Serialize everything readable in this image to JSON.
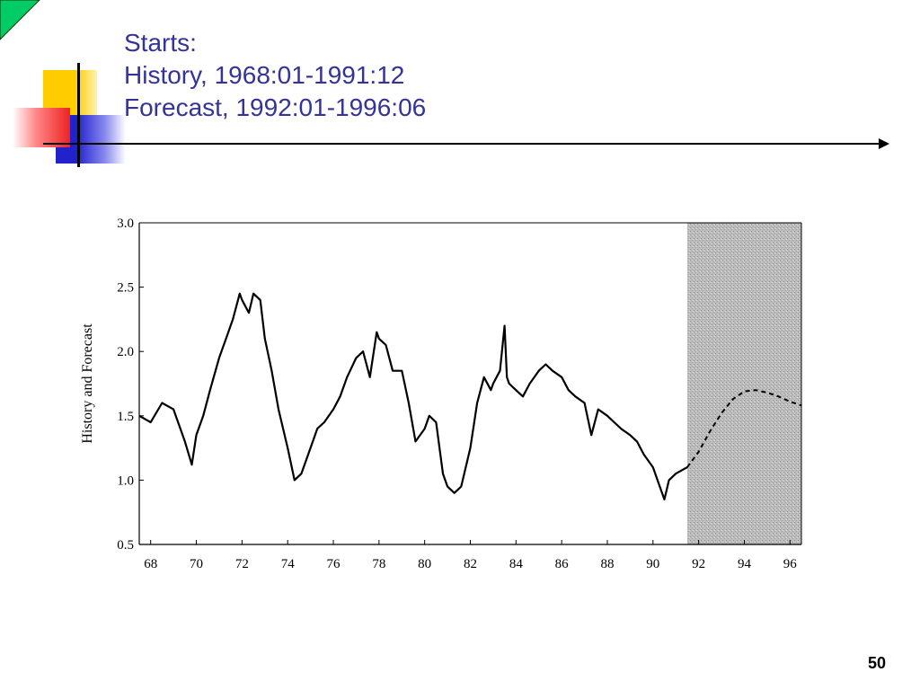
{
  "slide": {
    "title_lines": [
      "Starts:",
      "History, 1968:01-1991:12",
      "Forecast, 1992:01-1996:06"
    ],
    "page_number": "50",
    "title_color": "#333399"
  },
  "chart_data": {
    "type": "line",
    "ylabel": "History and Forecast",
    "xlabel": "",
    "ylim": [
      0.5,
      3.0
    ],
    "xlim": [
      67.5,
      96.5
    ],
    "x_tick_labels": [
      "68",
      "70",
      "72",
      "74",
      "76",
      "78",
      "80",
      "82",
      "84",
      "86",
      "88",
      "90",
      "92",
      "94",
      "96"
    ],
    "y_tick_labels": [
      "0.5",
      "1.0",
      "1.5",
      "2.0",
      "2.5",
      "3.0"
    ],
    "shaded_region": {
      "x_start": 91.5,
      "x_end": 96.5
    },
    "grid": false,
    "series": [
      {
        "style": "solid",
        "x": [
          67.5,
          68.0,
          68.5,
          69.0,
          69.5,
          69.8,
          70.0,
          70.3,
          70.6,
          71.0,
          71.3,
          71.6,
          71.9,
          72.0,
          72.3,
          72.5,
          72.8,
          73.0,
          73.3,
          73.6,
          74.0,
          74.3,
          74.6,
          75.0,
          75.3,
          75.6,
          76.0,
          76.3,
          76.6,
          77.0,
          77.3,
          77.6,
          77.9,
          78.0,
          78.3,
          78.6,
          79.0,
          79.3,
          79.6,
          80.0,
          80.2,
          80.5,
          80.8,
          81.0,
          81.3,
          81.6,
          82.0,
          82.3,
          82.6,
          82.9,
          83.0,
          83.3,
          83.5,
          83.6,
          83.7,
          84.0,
          84.3,
          84.6,
          85.0,
          85.3,
          85.6,
          86.0,
          86.3,
          86.6,
          87.0,
          87.3,
          87.6,
          88.0,
          88.3,
          88.6,
          89.0,
          89.3,
          89.6,
          90.0,
          90.3,
          90.5,
          90.7,
          91.0,
          91.5
        ],
        "values": [
          1.5,
          1.45,
          1.6,
          1.55,
          1.3,
          1.12,
          1.35,
          1.5,
          1.7,
          1.95,
          2.1,
          2.25,
          2.45,
          2.4,
          2.3,
          2.45,
          2.4,
          2.1,
          1.85,
          1.55,
          1.25,
          1.0,
          1.05,
          1.25,
          1.4,
          1.45,
          1.55,
          1.65,
          1.8,
          1.95,
          2.0,
          1.8,
          2.15,
          2.1,
          2.05,
          1.85,
          1.85,
          1.6,
          1.3,
          1.4,
          1.5,
          1.45,
          1.05,
          0.95,
          0.9,
          0.95,
          1.25,
          1.6,
          1.8,
          1.7,
          1.75,
          1.85,
          2.2,
          1.8,
          1.75,
          1.7,
          1.65,
          1.75,
          1.85,
          1.9,
          1.85,
          1.8,
          1.7,
          1.65,
          1.6,
          1.35,
          1.55,
          1.5,
          1.45,
          1.4,
          1.35,
          1.3,
          1.2,
          1.1,
          0.95,
          0.85,
          1.0,
          1.05,
          1.1
        ]
      },
      {
        "style": "dashed",
        "x": [
          91.5,
          92.0,
          92.5,
          93.0,
          93.5,
          94.0,
          94.5,
          95.0,
          95.5,
          96.0,
          96.5
        ],
        "values": [
          1.1,
          1.22,
          1.38,
          1.52,
          1.63,
          1.69,
          1.7,
          1.68,
          1.65,
          1.61,
          1.58
        ]
      }
    ]
  }
}
